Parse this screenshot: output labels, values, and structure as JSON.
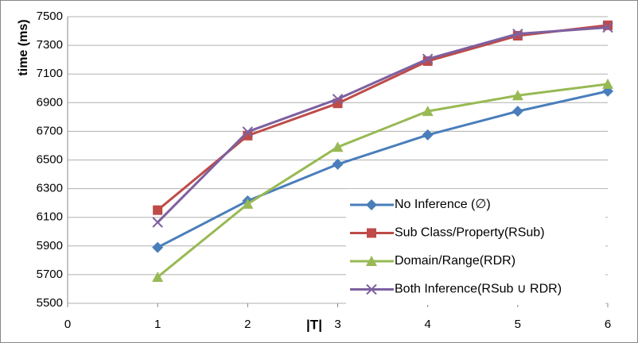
{
  "chart_data": {
    "type": "line",
    "x_label": "|T|",
    "y_label": "time (ms)",
    "x": [
      1,
      2,
      3,
      4,
      5,
      6
    ],
    "series": [
      {
        "name": "No Inference (∅)",
        "color": "#4a7ebb",
        "marker": "diamond",
        "values": [
          5890,
          6215,
          6470,
          6675,
          6840,
          6980
        ]
      },
      {
        "name": "Sub Class/Property(RSub)",
        "color": "#be4b48",
        "marker": "square",
        "values": [
          6150,
          6670,
          6895,
          7190,
          7367,
          7440
        ]
      },
      {
        "name": "Domain/Range(RDR)",
        "color": "#98b954",
        "marker": "triangle",
        "values": [
          5683,
          6193,
          6590,
          6840,
          6950,
          7030
        ]
      },
      {
        "name": "Both Inference(RSub ∪ RDR)",
        "color": "#7d60a0",
        "marker": "x",
        "values": [
          6065,
          6697,
          6925,
          7205,
          7380,
          7425
        ]
      }
    ],
    "xlim": [
      0,
      6
    ],
    "xticks": [
      0,
      1,
      2,
      3,
      4,
      5,
      6
    ],
    "ylim": [
      5500,
      7500
    ],
    "yticks": [
      5500,
      5700,
      5900,
      6100,
      6300,
      6500,
      6700,
      6900,
      7100,
      7300,
      7500
    ],
    "grid": true,
    "legend": "lower right"
  }
}
